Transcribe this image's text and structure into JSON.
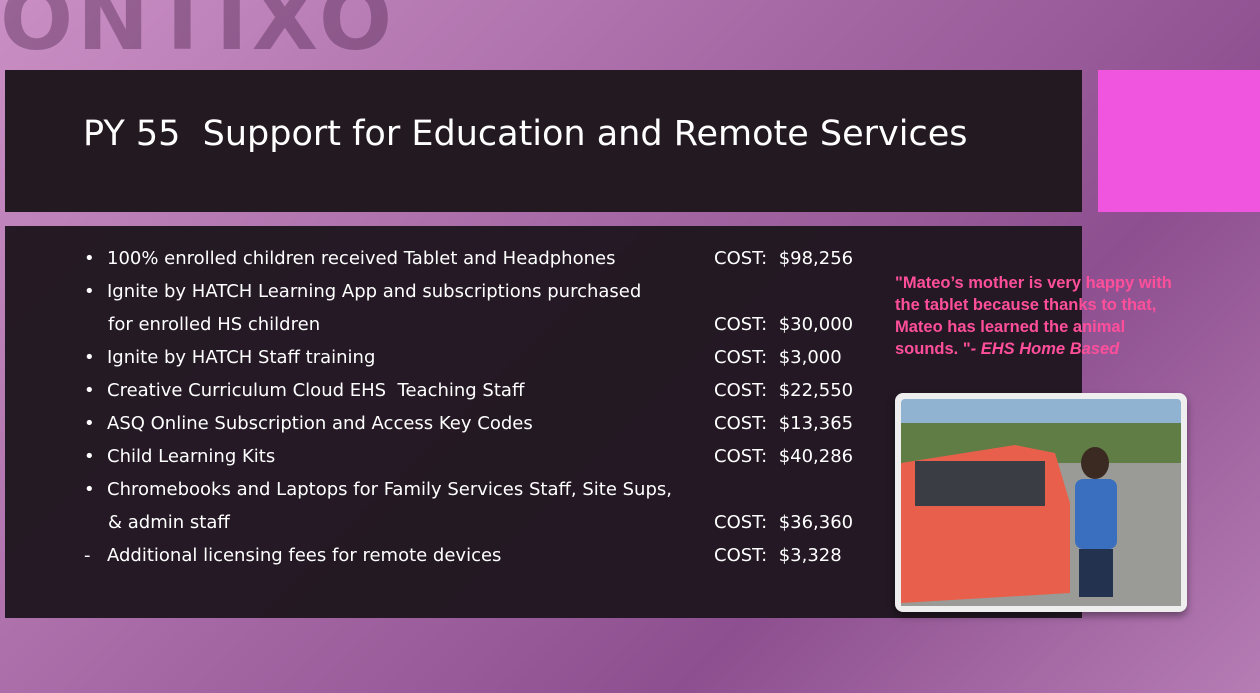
{
  "logo": "ONTIXO",
  "title": "PY 55  Support for Education and Remote Services",
  "items": [
    {
      "bullet": "•",
      "lines": [
        "100% enrolled children received Tablet and Headphones"
      ],
      "cost": "COST:  $98,256"
    },
    {
      "bullet": "•",
      "lines": [
        "Ignite by HATCH Learning App and subscriptions purchased",
        "for enrolled HS children"
      ],
      "cost": "COST:  $30,000"
    },
    {
      "bullet": "•",
      "lines": [
        "Ignite by HATCH Staff training"
      ],
      "cost": "COST:  $3,000"
    },
    {
      "bullet": "•",
      "lines": [
        "Creative Curriculum Cloud EHS  Teaching Staff"
      ],
      "cost": "COST:  $22,550"
    },
    {
      "bullet": "•",
      "lines": [
        "ASQ Online Subscription and Access Key Codes"
      ],
      "cost": "COST:  $13,365"
    },
    {
      "bullet": "•",
      "lines": [
        "Child Learning Kits"
      ],
      "cost": "COST:  $40,286"
    },
    {
      "bullet": "•",
      "lines": [
        "Chromebooks and Laptops for Family Services Staff, Site Sups,",
        "& admin staff"
      ],
      "cost": "COST:  $36,360"
    },
    {
      "bullet": "-",
      "lines": [
        "Additional licensing fees for remote devices"
      ],
      "cost": "COST:  $3,328"
    }
  ],
  "quote": {
    "text": "\"Mateo’s mother is very happy with the tablet because thanks to that, Mateo has learned the animal sounds. \"",
    "attribution": "- EHS Home Based"
  }
}
